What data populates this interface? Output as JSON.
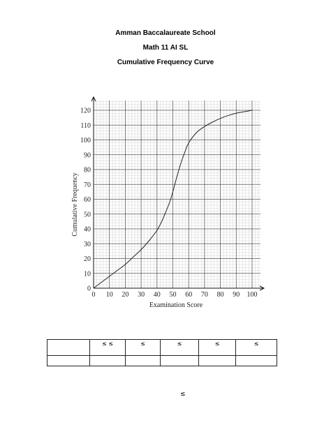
{
  "header": {
    "school": "Amman Baccalaureate School",
    "course": "Math 11 AI SL",
    "title": "Cumulative Frequency Curve"
  },
  "chart_data": {
    "type": "line",
    "xlabel": "Examination Score",
    "ylabel": "Cumulative Frequency",
    "xlim": [
      0,
      100
    ],
    "ylim": [
      0,
      120
    ],
    "x_ticks": [
      "0",
      "10",
      "20",
      "30",
      "40",
      "50",
      "60",
      "70",
      "80",
      "90",
      "100"
    ],
    "y_ticks": [
      "0",
      "10",
      "20",
      "30",
      "40",
      "50",
      "60",
      "70",
      "80",
      "90",
      "100",
      "110",
      "120"
    ],
    "grid": true,
    "series": [
      {
        "x": [
          0,
          5,
          10,
          15,
          20,
          25,
          30,
          35,
          40,
          43,
          45,
          48,
          50,
          52,
          55,
          58,
          60,
          65,
          70,
          75,
          80,
          85,
          90,
          95,
          100
        ],
        "y": [
          0,
          4,
          8,
          12,
          16,
          21,
          26,
          32,
          39,
          45,
          50,
          58,
          65,
          73,
          84,
          93,
          98,
          105,
          109,
          112,
          114.5,
          116.5,
          118,
          119,
          120
        ]
      }
    ]
  },
  "table": {
    "header_cells": [
      "≤ ≤",
      "≤",
      "≤",
      "≤",
      "≤"
    ],
    "row2_cells": [
      "",
      "",
      "",
      "",
      "",
      ""
    ]
  },
  "stray_symbol": "≤"
}
